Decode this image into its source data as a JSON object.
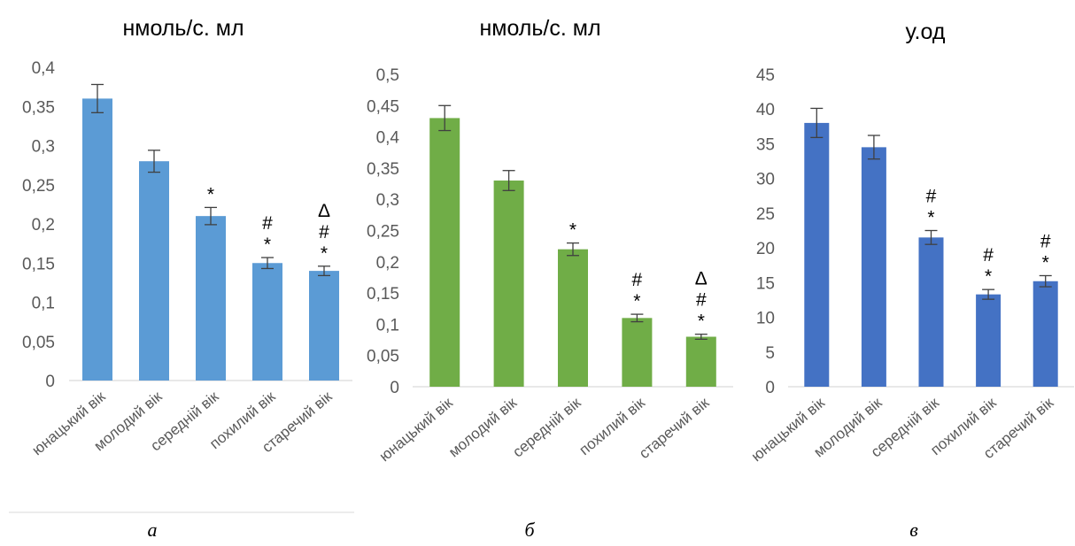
{
  "chart_data": [
    {
      "type": "bar",
      "title": "нмоль/с. мл",
      "caption": "а",
      "color": "#5b9bd5",
      "categories": [
        "юнацький вік",
        "молодий вік",
        "середній вік",
        "похилий вік",
        "старечий вік"
      ],
      "values": [
        0.36,
        0.28,
        0.21,
        0.15,
        0.14
      ],
      "errors": [
        0.018,
        0.014,
        0.011,
        0.007,
        0.006
      ],
      "annotations": [
        [],
        [],
        [
          "*"
        ],
        [
          "*",
          "#"
        ],
        [
          "*",
          "#",
          "Δ"
        ]
      ],
      "ylim": [
        0,
        0.4
      ],
      "yticks": [
        0,
        0.05,
        0.1,
        0.15,
        0.2,
        0.25,
        0.3,
        0.35,
        0.4
      ],
      "ytick_labels": [
        "0",
        "0,05",
        "0,1",
        "0,15",
        "0,2",
        "0,25",
        "0,3",
        "0,35",
        "0,4"
      ],
      "grid": false
    },
    {
      "type": "bar",
      "title": "нмоль/с. мл",
      "caption": "б",
      "color": "#70ad47",
      "categories": [
        "юнацький вік",
        "молодий вік",
        "середній вік",
        "похилий вік",
        "старечий вік"
      ],
      "values": [
        0.43,
        0.33,
        0.22,
        0.11,
        0.08
      ],
      "errors": [
        0.02,
        0.016,
        0.01,
        0.006,
        0.004
      ],
      "annotations": [
        [],
        [],
        [
          "*"
        ],
        [
          "*",
          "#"
        ],
        [
          "*",
          "#",
          "Δ"
        ]
      ],
      "ylim": [
        0,
        0.5
      ],
      "yticks": [
        0,
        0.05,
        0.1,
        0.15,
        0.2,
        0.25,
        0.3,
        0.35,
        0.4,
        0.45,
        0.5
      ],
      "ytick_labels": [
        "0",
        "0,05",
        "0,1",
        "0,15",
        "0,2",
        "0,25",
        "0,3",
        "0,35",
        "0,4",
        "0,45",
        "0,5"
      ],
      "grid": false
    },
    {
      "type": "bar",
      "title": "у.од",
      "caption": "в",
      "color": "#4472c4",
      "categories": [
        "юнацький вік",
        "молодий вік",
        "середній вік",
        "похилий вік",
        "старечий вік"
      ],
      "values": [
        38,
        34.5,
        21.5,
        13.3,
        15.2
      ],
      "errors": [
        2.1,
        1.7,
        1.0,
        0.7,
        0.8
      ],
      "annotations": [
        [],
        [],
        [
          "*",
          "#"
        ],
        [
          "*",
          "#"
        ],
        [
          "*",
          "#"
        ]
      ],
      "ylim": [
        0,
        45
      ],
      "yticks": [
        0,
        5,
        10,
        15,
        20,
        25,
        30,
        35,
        40,
        45
      ],
      "ytick_labels": [
        "0",
        "5",
        "10",
        "15",
        "20",
        "25",
        "30",
        "35",
        "40",
        "45"
      ],
      "grid": false
    }
  ]
}
